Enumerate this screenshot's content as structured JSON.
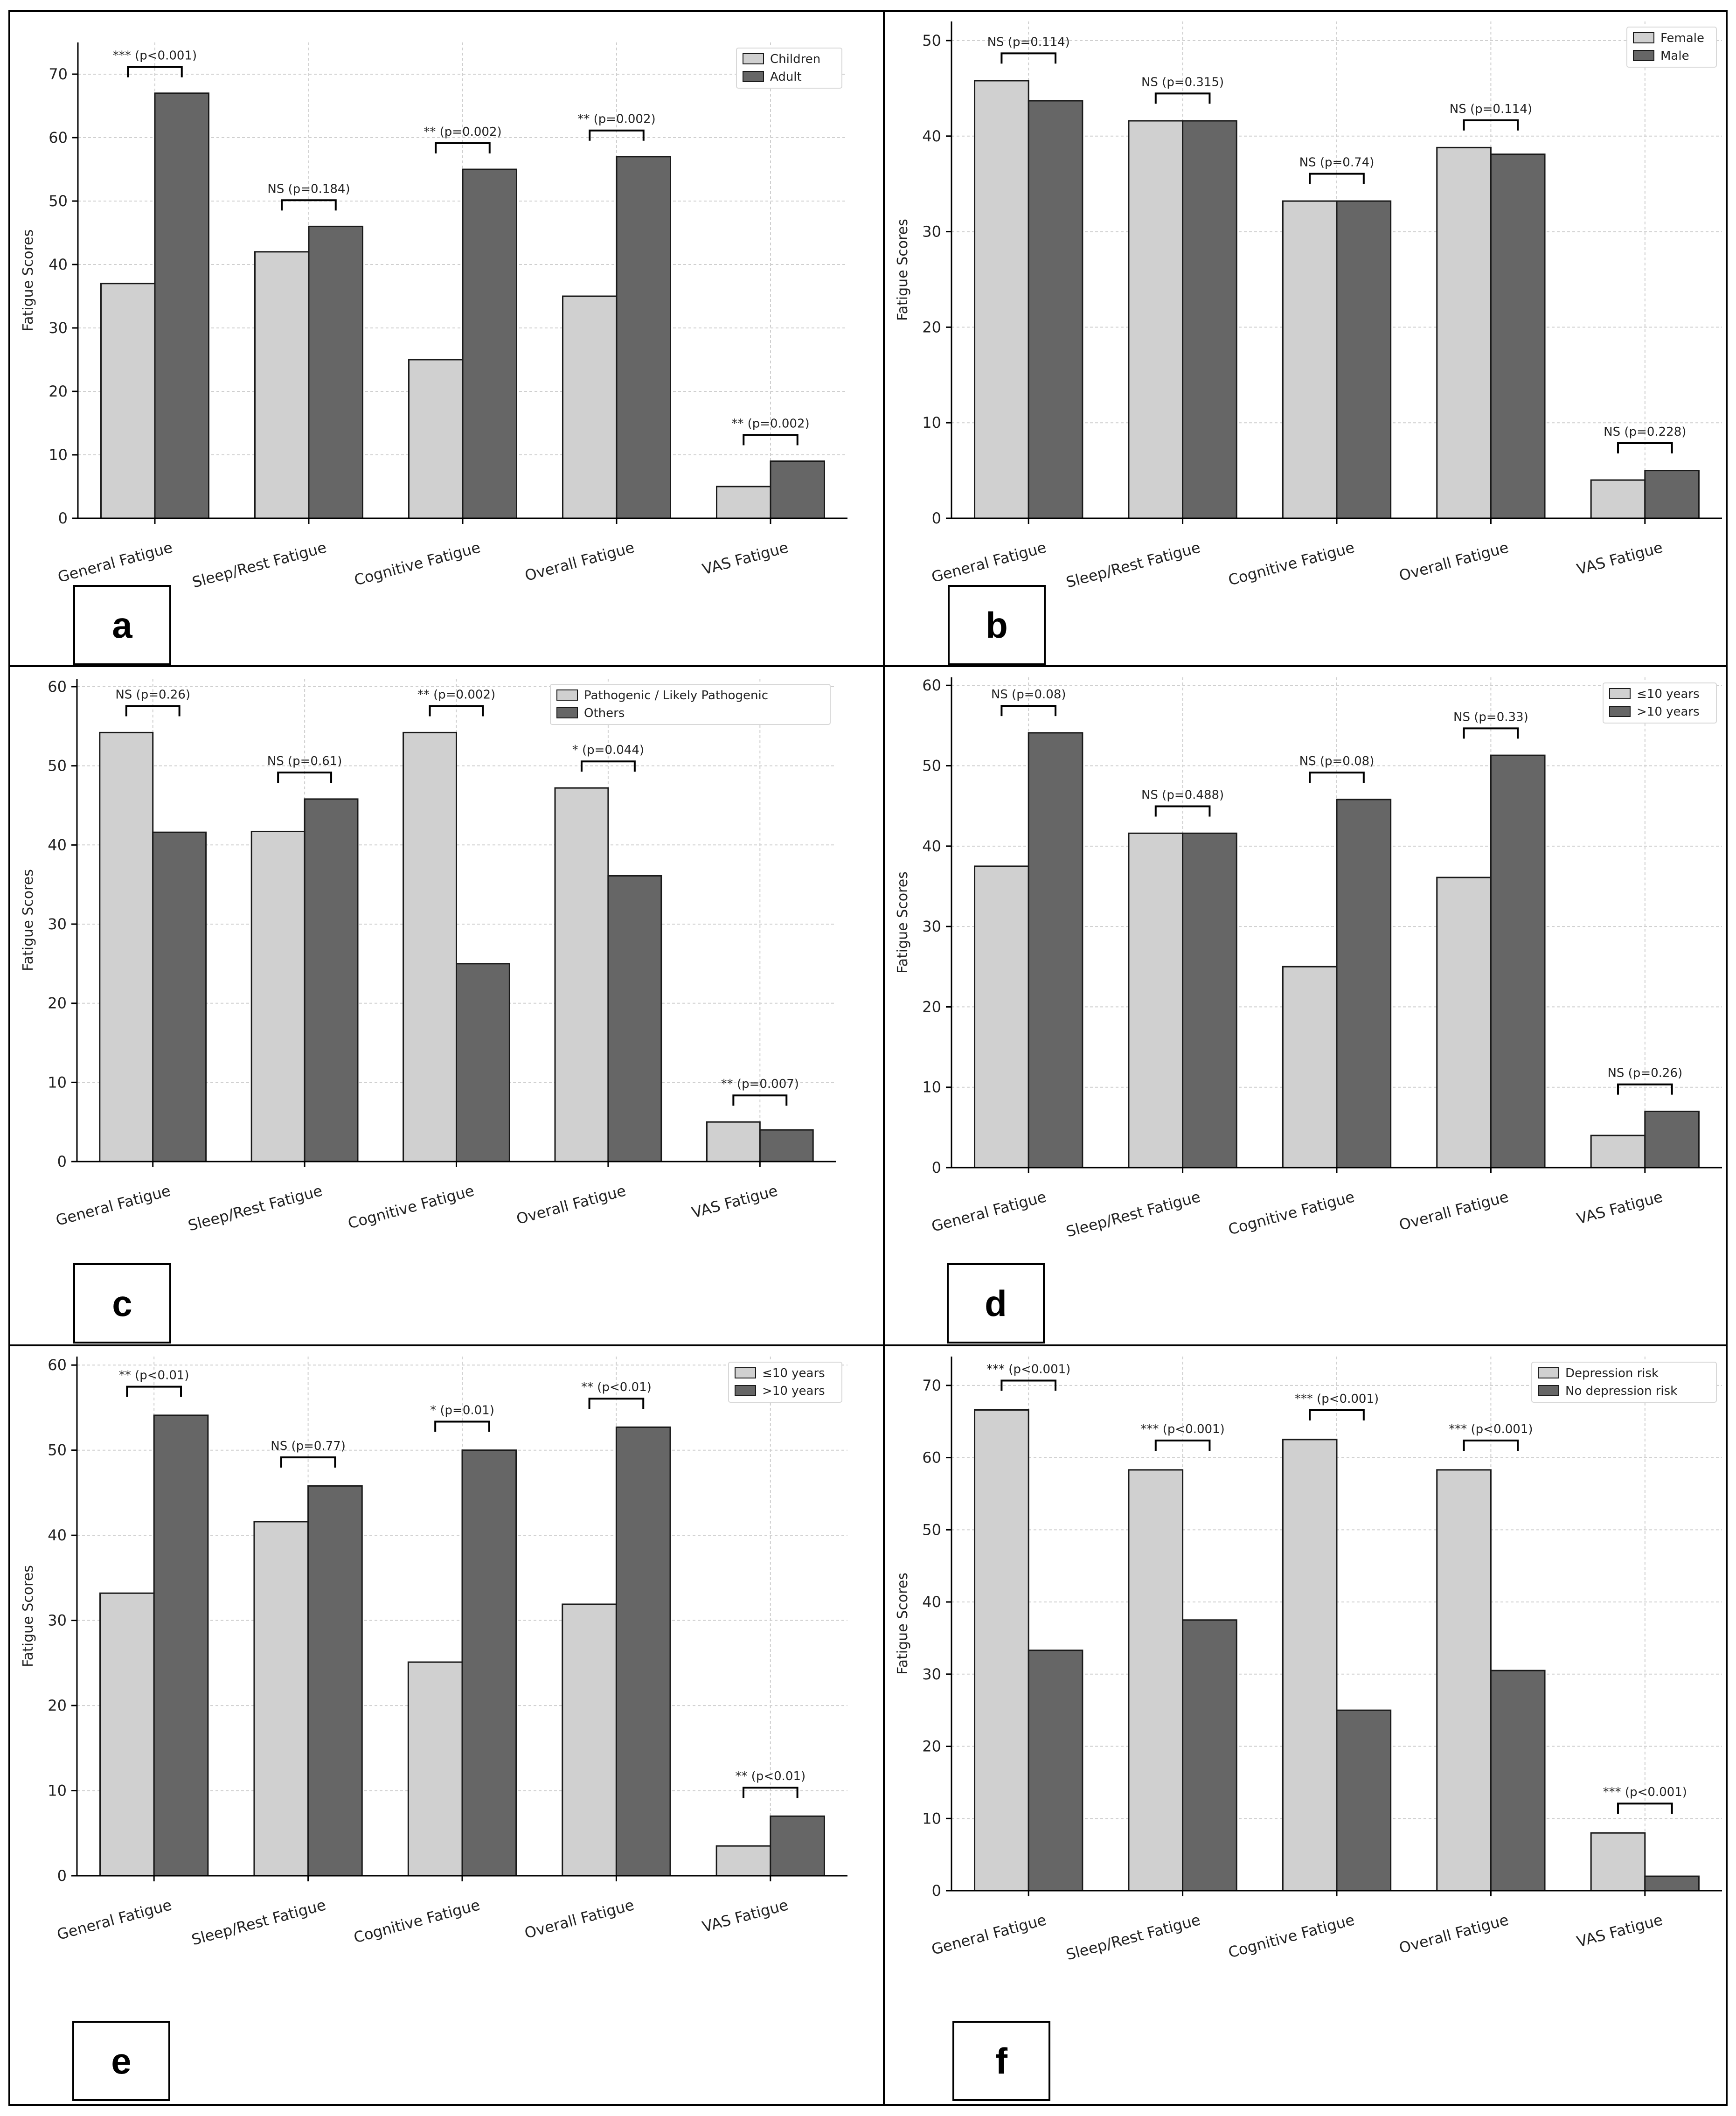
{
  "colors": {
    "light": "#d0d0d0",
    "dark": "#666666",
    "grid": "#cfcfcf",
    "axis": "#000000"
  },
  "chart_data": [
    {
      "panel": "a",
      "type": "bar",
      "ylabel": "Fatigue Scores",
      "ylim": [
        0,
        75
      ],
      "yticks": [
        0,
        10,
        20,
        30,
        40,
        50,
        60,
        70
      ],
      "legend_position": "top-right",
      "categories": [
        "General Fatigue",
        "Sleep/Rest Fatigue",
        "Cognitive Fatigue",
        "Overall Fatigue",
        "VAS Fatigue"
      ],
      "series": [
        {
          "name": "Children",
          "values": [
            37,
            42,
            25,
            35,
            5
          ]
        },
        {
          "name": "Adult",
          "values": [
            67,
            46,
            55,
            57,
            9
          ]
        }
      ],
      "annotations": [
        "*** (p<0.001)",
        "NS (p=0.184)",
        "** (p=0.002)",
        "** (p=0.002)",
        "** (p=0.002)"
      ]
    },
    {
      "panel": "b",
      "type": "bar",
      "ylabel": "Fatigue Scores",
      "ylim": [
        0,
        52
      ],
      "yticks": [
        0,
        10,
        20,
        30,
        40,
        50
      ],
      "legend_position": "top-right",
      "categories": [
        "General Fatigue",
        "Sleep/Rest Fatigue",
        "Cognitive Fatigue",
        "Overall Fatigue",
        "VAS Fatigue"
      ],
      "series": [
        {
          "name": "Female",
          "values": [
            45.8,
            41.6,
            33.2,
            38.8,
            4
          ]
        },
        {
          "name": "Male",
          "values": [
            43.7,
            41.6,
            33.2,
            38.1,
            5
          ]
        }
      ],
      "annotations": [
        "NS (p=0.114)",
        "NS (p=0.315)",
        "NS (p=0.74)",
        "NS (p=0.114)",
        "NS (p=0.228)"
      ]
    },
    {
      "panel": "c",
      "type": "bar",
      "ylabel": "Fatigue Scores",
      "ylim": [
        0,
        61
      ],
      "yticks": [
        0,
        10,
        20,
        30,
        40,
        50,
        60
      ],
      "legend_position": "top-right",
      "categories": [
        "General Fatigue",
        "Sleep/Rest Fatigue",
        "Cognitive Fatigue",
        "Overall Fatigue",
        "VAS Fatigue"
      ],
      "series": [
        {
          "name": "Pathogenic / Likely Pathogenic",
          "values": [
            54.2,
            41.7,
            54.2,
            47.2,
            5
          ]
        },
        {
          "name": "Others",
          "values": [
            41.6,
            45.8,
            25,
            36.1,
            4
          ]
        }
      ],
      "annotations": [
        "NS (p=0.26)",
        "NS (p=0.61)",
        "** (p=0.002)",
        "* (p=0.044)",
        "** (p=0.007)"
      ]
    },
    {
      "panel": "d",
      "type": "bar",
      "ylabel": "Fatigue Scores",
      "ylim": [
        0,
        61
      ],
      "yticks": [
        0,
        10,
        20,
        30,
        40,
        50,
        60
      ],
      "legend_position": "top-right",
      "categories": [
        "General Fatigue",
        "Sleep/Rest Fatigue",
        "Cognitive Fatigue",
        "Overall Fatigue",
        "VAS Fatigue"
      ],
      "series": [
        {
          "name": "≤10 years",
          "values": [
            37.5,
            41.6,
            25,
            36.1,
            4
          ]
        },
        {
          "name": ">10 years",
          "values": [
            54.1,
            41.6,
            45.8,
            51.3,
            7
          ]
        }
      ],
      "annotations": [
        "NS (p=0.08)",
        "NS (p=0.488)",
        "NS (p=0.08)",
        "NS (p=0.33)",
        "NS (p=0.26)"
      ]
    },
    {
      "panel": "e",
      "type": "bar",
      "ylabel": "Fatigue Scores",
      "ylim": [
        0,
        61
      ],
      "yticks": [
        0,
        10,
        20,
        30,
        40,
        50,
        60
      ],
      "legend_position": "top-right",
      "categories": [
        "General Fatigue",
        "Sleep/Rest Fatigue",
        "Cognitive Fatigue",
        "Overall Fatigue",
        "VAS Fatigue"
      ],
      "series": [
        {
          "name": "≤10 years",
          "values": [
            33.2,
            41.6,
            25.1,
            31.9,
            3.5
          ]
        },
        {
          "name": ">10 years",
          "values": [
            54.1,
            45.8,
            50,
            52.7,
            7
          ]
        }
      ],
      "annotations": [
        "** (p<0.01)",
        "NS (p=0.77)",
        "* (p=0.01)",
        "** (p<0.01)",
        "** (p<0.01)"
      ]
    },
    {
      "panel": "f",
      "type": "bar",
      "ylabel": "Fatigue Scores",
      "ylim": [
        0,
        74
      ],
      "yticks": [
        0,
        10,
        20,
        30,
        40,
        50,
        60,
        70
      ],
      "legend_position": "top-right",
      "categories": [
        "General Fatigue",
        "Sleep/Rest Fatigue",
        "Cognitive Fatigue",
        "Overall Fatigue",
        "VAS Fatigue"
      ],
      "series": [
        {
          "name": "Depression risk",
          "values": [
            66.6,
            58.3,
            62.5,
            58.3,
            8
          ]
        },
        {
          "name": "No depression risk",
          "values": [
            33.3,
            37.5,
            25,
            30.5,
            2
          ]
        }
      ],
      "annotations": [
        "*** (p<0.001)",
        "*** (p<0.001)",
        "*** (p<0.001)",
        "*** (p<0.001)",
        "*** (p<0.001)"
      ]
    }
  ]
}
